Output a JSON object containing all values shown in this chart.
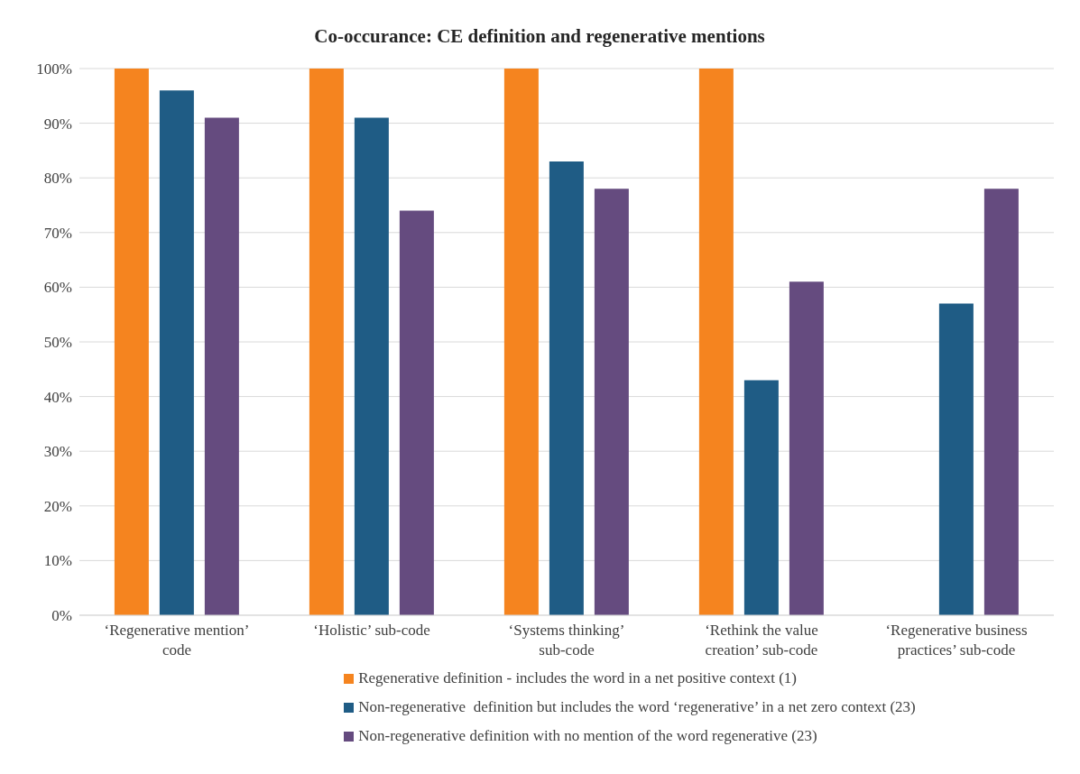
{
  "chart_data": {
    "type": "bar",
    "title": "Co-occurance: CE definition and regenerative mentions",
    "categories": [
      "‘Regenerative mention’ code",
      "‘Holistic’ sub-code",
      "‘Systems thinking’ sub-code",
      "‘Rethink the value creation’ sub-code",
      "‘Regenerative business practices’ sub-code"
    ],
    "series": [
      {
        "name": "Regenerative definition - includes the word in a net positive context (1)",
        "color": "#f5841f",
        "values": [
          100,
          100,
          100,
          100,
          0
        ]
      },
      {
        "name": "Non-regenerative  definition but includes the word ‘regenerative’ in a net zero context (23)",
        "color": "#1f5c85",
        "values": [
          96,
          91,
          83,
          43,
          57
        ]
      },
      {
        "name": "Non-regenerative definition with no mention of the word regenerative (23)",
        "color": "#654b7f",
        "values": [
          91,
          74,
          78,
          61,
          78
        ]
      }
    ],
    "ylim": [
      0,
      100
    ],
    "yticks": [
      {
        "value": 0,
        "label": "0%"
      },
      {
        "value": 10,
        "label": "10%"
      },
      {
        "value": 20,
        "label": "20%"
      },
      {
        "value": 30,
        "label": "30%"
      },
      {
        "value": 40,
        "label": "40%"
      },
      {
        "value": 50,
        "label": "50%"
      },
      {
        "value": 60,
        "label": "60%"
      },
      {
        "value": 70,
        "label": "70%"
      },
      {
        "value": 80,
        "label": "80%"
      },
      {
        "value": 90,
        "label": "90%"
      },
      {
        "value": 100,
        "label": "100%"
      }
    ],
    "grid": "y",
    "legend": "bottom"
  }
}
